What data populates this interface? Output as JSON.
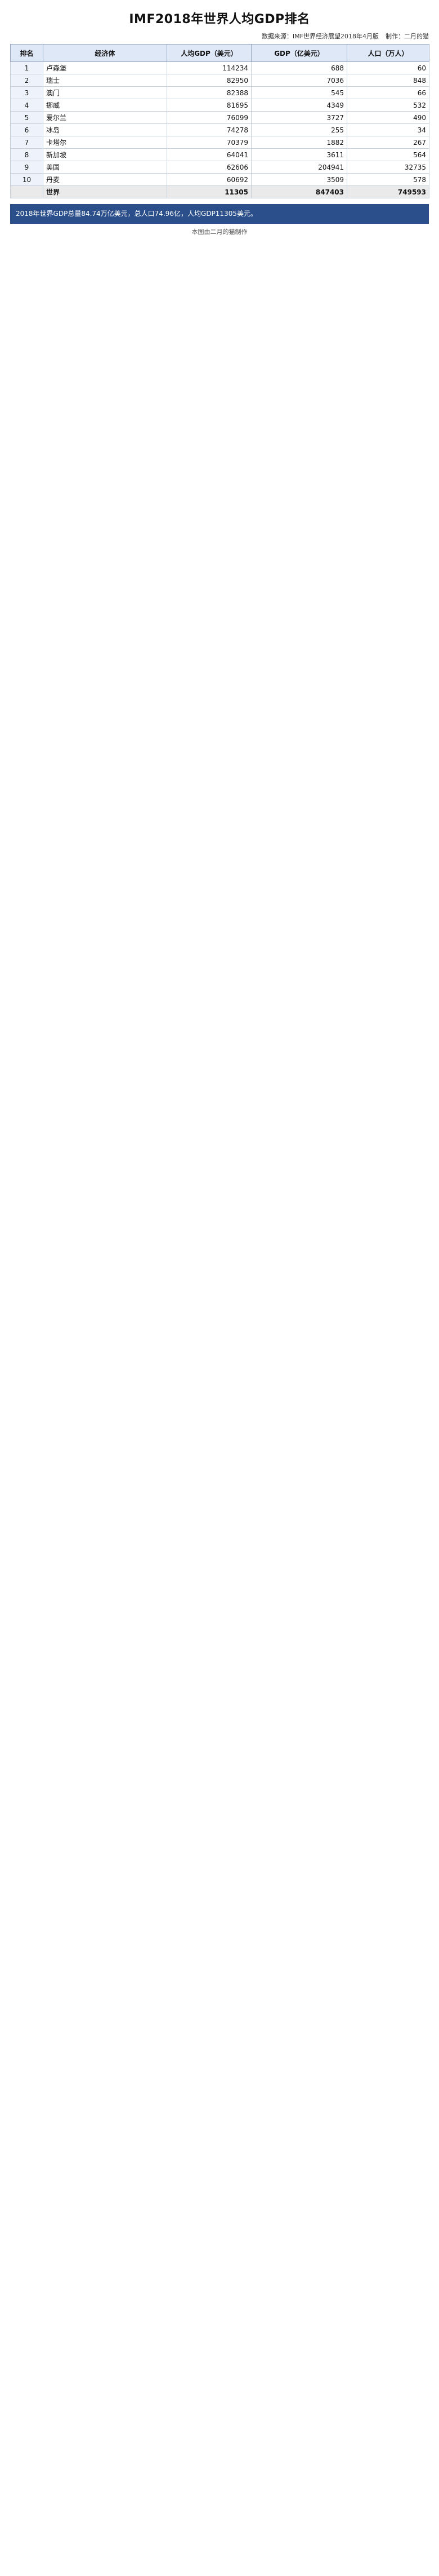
{
  "title": "IMF2018年世界人均GDP排名",
  "meta": {
    "source": "数据来源：IMF世界经济展望2018年4月版",
    "author": "制作：二月的猫"
  },
  "columns": {
    "rank": "排名",
    "name": "经济体",
    "per_capita": "人均GDP（美元）",
    "gdp": "GDP（亿美元）",
    "population": "人口（万人）"
  },
  "rows": [
    {
      "rank": "1",
      "name": "卢森堡",
      "per_capita": "114234",
      "gdp": "688",
      "population": "60"
    },
    {
      "rank": "2",
      "name": "瑞士",
      "per_capita": "82950",
      "gdp": "7036",
      "population": "848"
    },
    {
      "rank": "3",
      "name": "澳门",
      "per_capita": "82388",
      "gdp": "545",
      "population": "66"
    },
    {
      "rank": "4",
      "name": "挪威",
      "per_capita": "81695",
      "gdp": "4349",
      "population": "532"
    },
    {
      "rank": "5",
      "name": "爱尔兰",
      "per_capita": "76099",
      "gdp": "3727",
      "population": "490"
    },
    {
      "rank": "6",
      "name": "冰岛",
      "per_capita": "74278",
      "gdp": "255",
      "population": "34"
    },
    {
      "rank": "7",
      "name": "卡塔尔",
      "per_capita": "70379",
      "gdp": "1882",
      "population": "267"
    },
    {
      "rank": "8",
      "name": "新加坡",
      "per_capita": "64041",
      "gdp": "3611",
      "population": "564"
    },
    {
      "rank": "9",
      "name": "美国",
      "per_capita": "62606",
      "gdp": "204941",
      "population": "32735"
    },
    {
      "rank": "10",
      "name": "丹麦",
      "per_capita": "60692",
      "gdp": "3509",
      "population": "578"
    }
  ],
  "total": {
    "label": "世界",
    "per_capita": "11305",
    "gdp": "847403",
    "population": "749593"
  },
  "note": "2018年世界GDP总量84.74万亿美元，总人口74.96亿，人均GDP11305美元。",
  "footer": "本图由二月的猫制作"
}
